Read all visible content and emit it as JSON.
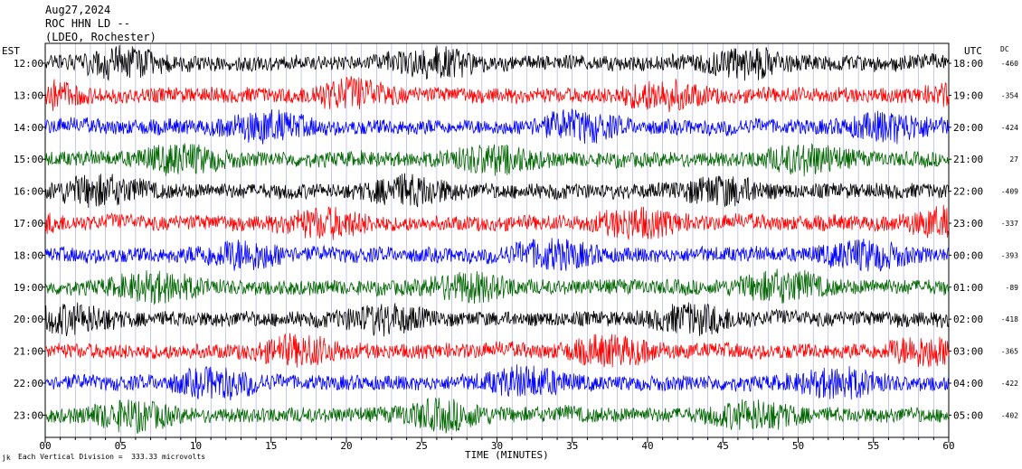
{
  "header": {
    "date": "Aug27,2024",
    "station": "ROC HHN LD --",
    "network": "(LDEO, Rochester)"
  },
  "axes": {
    "left_label": "EST",
    "right_label": "UTC",
    "dc_label": "DC",
    "x_label": "TIME (MINUTES)",
    "footnote": "Each Vertical Division =  333.33 microvolts",
    "footnote_mark": "jk"
  },
  "colors": {
    "trace_cycle": [
      "#000000",
      "#ff0000",
      "#0000ff",
      "#006600"
    ],
    "gridline": "#0000aa"
  },
  "chart_data": {
    "type": "line",
    "title": "Aug27,2024 ROC HHN LD -- (LDEO, Rochester)",
    "xlabel": "TIME (MINUTES)",
    "xlim": [
      0,
      60
    ],
    "x_ticks": [
      "00",
      "05",
      "10",
      "15",
      "20",
      "25",
      "30",
      "35",
      "40",
      "45",
      "50",
      "55",
      "60"
    ],
    "rows": [
      {
        "est": "12:00",
        "utc": "18:00",
        "dc": "-460",
        "color": "#000000"
      },
      {
        "est": "13:00",
        "utc": "19:00",
        "dc": "-354",
        "color": "#ff0000"
      },
      {
        "est": "14:00",
        "utc": "20:00",
        "dc": "-424",
        "color": "#0000ff"
      },
      {
        "est": "15:00",
        "utc": "21:00",
        "dc": "27",
        "color": "#006600"
      },
      {
        "est": "16:00",
        "utc": "22:00",
        "dc": "-409",
        "color": "#000000"
      },
      {
        "est": "17:00",
        "utc": "23:00",
        "dc": "-337",
        "color": "#ff0000"
      },
      {
        "est": "18:00",
        "utc": "00:00",
        "dc": "-393",
        "color": "#0000ff"
      },
      {
        "est": "19:00",
        "utc": "01:00",
        "dc": "-89",
        "color": "#006600"
      },
      {
        "est": "20:00",
        "utc": "02:00",
        "dc": "-418",
        "color": "#000000"
      },
      {
        "est": "21:00",
        "utc": "03:00",
        "dc": "-365",
        "color": "#ff0000"
      },
      {
        "est": "22:00",
        "utc": "04:00",
        "dc": "-422",
        "color": "#0000ff"
      },
      {
        "est": "23:00",
        "utc": "05:00",
        "dc": "-402",
        "color": "#006600"
      }
    ]
  }
}
